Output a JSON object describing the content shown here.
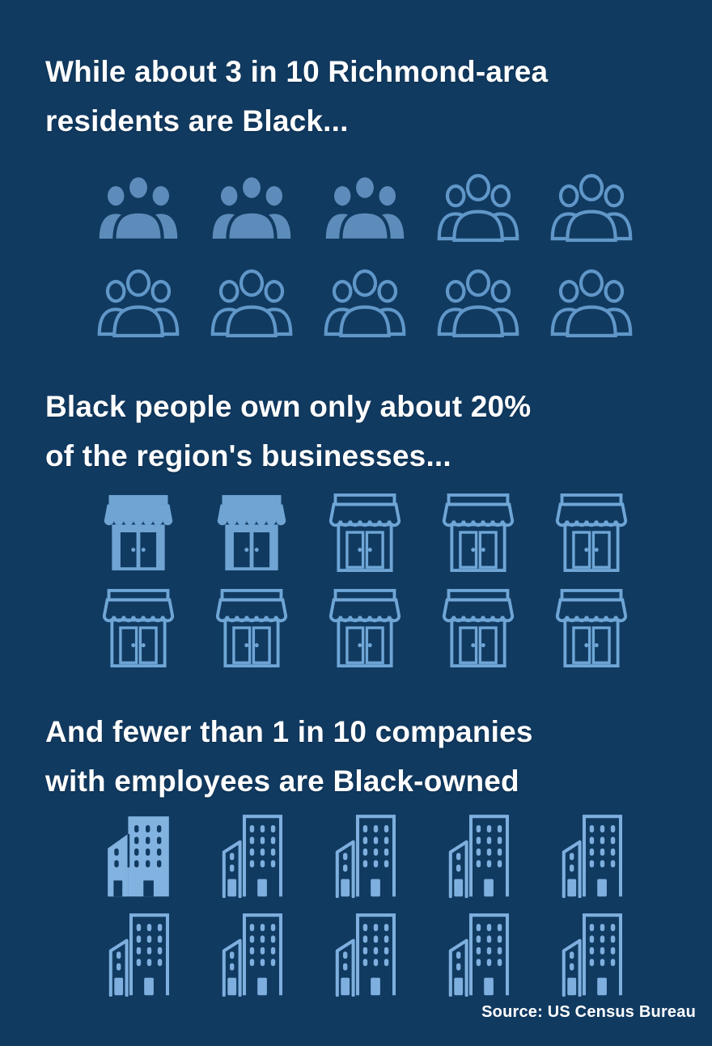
{
  "background_color": "#113A61",
  "text_color": "#FFFFFF",
  "sections": [
    {
      "headline": "While about 3 in 10 Richmond-area\nresidents are Black...",
      "icon": "people",
      "icon_name": "people-group",
      "total": 10,
      "highlighted": 3,
      "per_row": 5,
      "fill_color": "#5D8CBA",
      "outline_color": "#6097C8"
    },
    {
      "headline": "Black people own only about 20%\nof the region's businesses...",
      "icon": "store",
      "icon_name": "storefront",
      "total": 10,
      "highlighted": 2,
      "per_row": 5,
      "fill_color": "#6FA4D3",
      "outline_color": "#6FA6D6"
    },
    {
      "headline": "And fewer than 1 in 10 companies\nwith employees are Black-owned",
      "icon": "building",
      "icon_name": "office-building",
      "total": 10,
      "highlighted": 1,
      "per_row": 5,
      "fill_color": "#82B2E0",
      "outline_color": "#7EAFDE"
    }
  ],
  "source": "Source: US Census Bureau",
  "chart_data": {
    "type": "pictograph",
    "series": [
      {
        "label": "Richmond-area residents who are Black",
        "icon": "people-group",
        "value": 3,
        "total": 10
      },
      {
        "label": "Region's businesses owned by Black people",
        "icon": "storefront",
        "value": 2,
        "total": 10
      },
      {
        "label": "Companies with employees that are Black-owned",
        "icon": "office-building",
        "value": 1,
        "total": 10
      }
    ],
    "legend": "filled icon = proportion highlighted, outlined icon = remainder",
    "source": "Source: US Census Bureau"
  }
}
